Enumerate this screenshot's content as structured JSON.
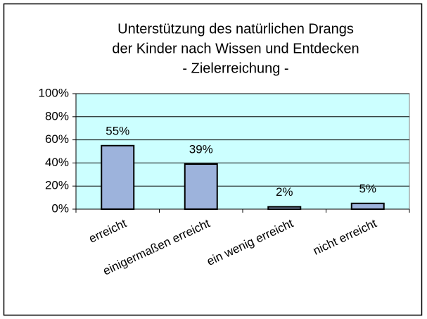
{
  "chart_data": {
    "type": "bar",
    "title": [
      "Unterstützung des natürlichen Drangs",
      "der Kinder nach Wissen und Entdecken",
      "- Zielerreichung -"
    ],
    "categories": [
      "erreicht",
      "einigermaßen erreicht",
      "ein wenig erreicht",
      "nicht erreicht"
    ],
    "values": [
      55,
      39,
      2,
      5
    ],
    "value_labels": [
      "55%",
      "39%",
      "2%",
      "5%"
    ],
    "color": "#9db3dc",
    "ylim": [
      0,
      100
    ],
    "yticks": [
      {
        "value": 0,
        "label": "0%"
      },
      {
        "value": 20,
        "label": "20%"
      },
      {
        "value": 40,
        "label": "40%"
      },
      {
        "value": 60,
        "label": "60%"
      },
      {
        "value": 80,
        "label": "80%"
      },
      {
        "value": 100,
        "label": "100%"
      }
    ],
    "grid": true
  }
}
